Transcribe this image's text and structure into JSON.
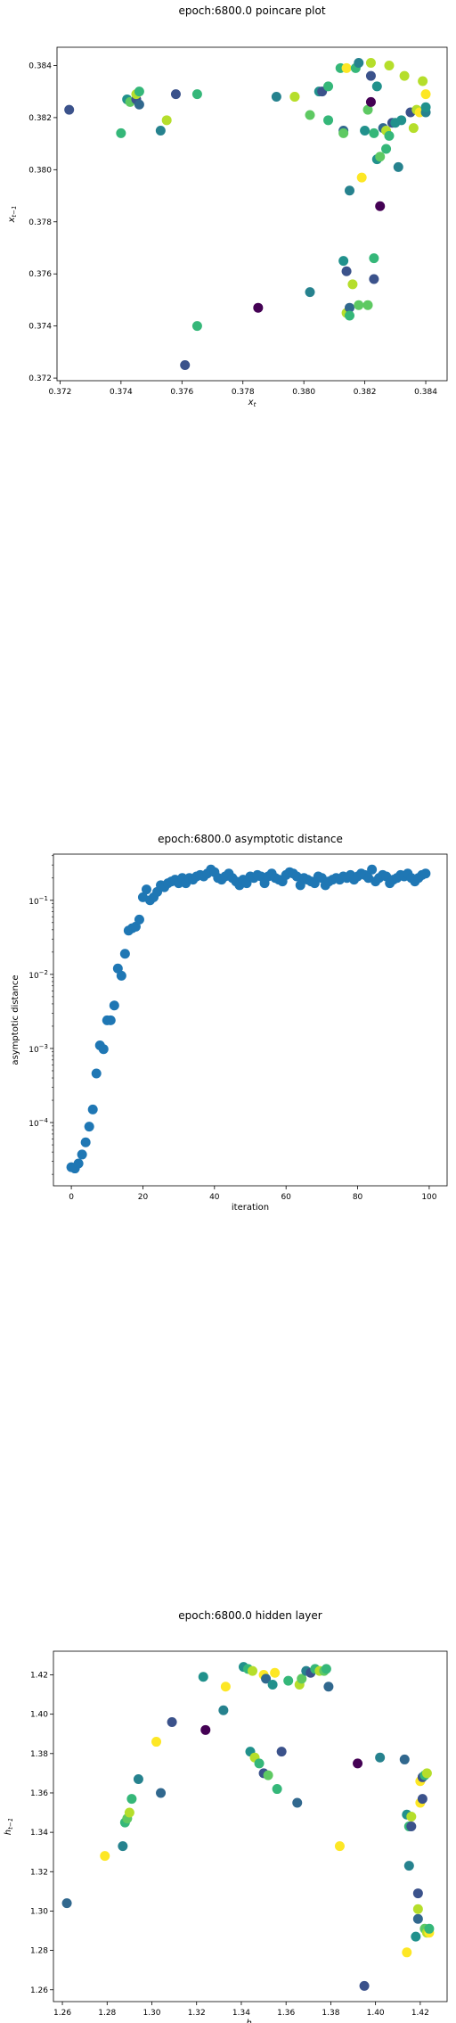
{
  "chart_data": [
    {
      "type": "scatter",
      "title": "epoch:6800.0 poincare plot",
      "xlabel": "x_t",
      "ylabel": "x_{t-1}",
      "xlim": [
        0.3719,
        0.3847
      ],
      "ylim": [
        0.3719,
        0.3847
      ],
      "xticks": [
        "0.372",
        "0.374",
        "0.376",
        "0.378",
        "0.380",
        "0.382",
        "0.384"
      ],
      "yticks": [
        "0.372",
        "0.374",
        "0.376",
        "0.378",
        "0.380",
        "0.382",
        "0.384"
      ],
      "grid": false,
      "points": [
        {
          "x": 0.3723,
          "y": 0.3823,
          "c": "#3b528b"
        },
        {
          "x": 0.374,
          "y": 0.3814,
          "c": "#35b779"
        },
        {
          "x": 0.3742,
          "y": 0.3827,
          "c": "#21918c"
        },
        {
          "x": 0.3743,
          "y": 0.3826,
          "c": "#5ec962"
        },
        {
          "x": 0.3745,
          "y": 0.3827,
          "c": "#3b528b"
        },
        {
          "x": 0.3745,
          "y": 0.3829,
          "c": "#b5de2b"
        },
        {
          "x": 0.3746,
          "y": 0.383,
          "c": "#35b779"
        },
        {
          "x": 0.3746,
          "y": 0.3825,
          "c": "#31688e"
        },
        {
          "x": 0.3753,
          "y": 0.3815,
          "c": "#26828e"
        },
        {
          "x": 0.3755,
          "y": 0.3819,
          "c": "#b5de2b"
        },
        {
          "x": 0.3758,
          "y": 0.3829,
          "c": "#3b528b"
        },
        {
          "x": 0.3761,
          "y": 0.3725,
          "c": "#3b528b"
        },
        {
          "x": 0.3765,
          "y": 0.3829,
          "c": "#35b779"
        },
        {
          "x": 0.3765,
          "y": 0.374,
          "c": "#35b779"
        },
        {
          "x": 0.3785,
          "y": 0.3747,
          "c": "#440154"
        },
        {
          "x": 0.3791,
          "y": 0.3828,
          "c": "#26828e"
        },
        {
          "x": 0.3797,
          "y": 0.3828,
          "c": "#fde725"
        },
        {
          "x": 0.3797,
          "y": 0.3828,
          "c": "#b5de2b"
        },
        {
          "x": 0.3802,
          "y": 0.3753,
          "c": "#26828e"
        },
        {
          "x": 0.3802,
          "y": 0.3821,
          "c": "#5ec962"
        },
        {
          "x": 0.3805,
          "y": 0.383,
          "c": "#21918c"
        },
        {
          "x": 0.3806,
          "y": 0.383,
          "c": "#3b528b"
        },
        {
          "x": 0.3808,
          "y": 0.3832,
          "c": "#35b779"
        },
        {
          "x": 0.3808,
          "y": 0.3819,
          "c": "#35b779"
        },
        {
          "x": 0.3812,
          "y": 0.3839,
          "c": "#35b779"
        },
        {
          "x": 0.3813,
          "y": 0.3815,
          "c": "#31688e"
        },
        {
          "x": 0.3813,
          "y": 0.3814,
          "c": "#5ec962"
        },
        {
          "x": 0.3813,
          "y": 0.3765,
          "c": "#21918c"
        },
        {
          "x": 0.3814,
          "y": 0.3761,
          "c": "#3b528b"
        },
        {
          "x": 0.3814,
          "y": 0.3745,
          "c": "#b5de2b"
        },
        {
          "x": 0.3814,
          "y": 0.3839,
          "c": "#fde725"
        },
        {
          "x": 0.3815,
          "y": 0.3792,
          "c": "#26828e"
        },
        {
          "x": 0.3815,
          "y": 0.3747,
          "c": "#31688e"
        },
        {
          "x": 0.3815,
          "y": 0.3744,
          "c": "#35b779"
        },
        {
          "x": 0.3816,
          "y": 0.3756,
          "c": "#b5de2b"
        },
        {
          "x": 0.3817,
          "y": 0.3839,
          "c": "#35b779"
        },
        {
          "x": 0.3818,
          "y": 0.3841,
          "c": "#26828e"
        },
        {
          "x": 0.3818,
          "y": 0.3748,
          "c": "#5ec962"
        },
        {
          "x": 0.3819,
          "y": 0.3797,
          "c": "#fde725"
        },
        {
          "x": 0.382,
          "y": 0.3815,
          "c": "#21918c"
        },
        {
          "x": 0.3821,
          "y": 0.3748,
          "c": "#5ec962"
        },
        {
          "x": 0.3821,
          "y": 0.3823,
          "c": "#5ec962"
        },
        {
          "x": 0.3822,
          "y": 0.3841,
          "c": "#b5de2b"
        },
        {
          "x": 0.3822,
          "y": 0.3836,
          "c": "#3b528b"
        },
        {
          "x": 0.3822,
          "y": 0.3826,
          "c": "#440154"
        },
        {
          "x": 0.3823,
          "y": 0.3758,
          "c": "#3b528b"
        },
        {
          "x": 0.3823,
          "y": 0.3766,
          "c": "#35b779"
        },
        {
          "x": 0.3823,
          "y": 0.3814,
          "c": "#35b779"
        },
        {
          "x": 0.3824,
          "y": 0.3832,
          "c": "#21918c"
        },
        {
          "x": 0.3824,
          "y": 0.3804,
          "c": "#21918c"
        },
        {
          "x": 0.3825,
          "y": 0.3786,
          "c": "#440154"
        },
        {
          "x": 0.3825,
          "y": 0.3805,
          "c": "#5ec962"
        },
        {
          "x": 0.3826,
          "y": 0.3816,
          "c": "#31688e"
        },
        {
          "x": 0.3827,
          "y": 0.3815,
          "c": "#b5de2b"
        },
        {
          "x": 0.3827,
          "y": 0.3808,
          "c": "#35b779"
        },
        {
          "x": 0.3828,
          "y": 0.3813,
          "c": "#35b779"
        },
        {
          "x": 0.3828,
          "y": 0.384,
          "c": "#b5de2b"
        },
        {
          "x": 0.3829,
          "y": 0.3818,
          "c": "#3b528b"
        },
        {
          "x": 0.383,
          "y": 0.3818,
          "c": "#21918c"
        },
        {
          "x": 0.3831,
          "y": 0.3801,
          "c": "#26828e"
        },
        {
          "x": 0.3832,
          "y": 0.3819,
          "c": "#21918c"
        },
        {
          "x": 0.3833,
          "y": 0.3836,
          "c": "#b5de2b"
        },
        {
          "x": 0.3835,
          "y": 0.3822,
          "c": "#3b528b"
        },
        {
          "x": 0.3836,
          "y": 0.3816,
          "c": "#b5de2b"
        },
        {
          "x": 0.3837,
          "y": 0.3823,
          "c": "#b5de2b"
        },
        {
          "x": 0.3838,
          "y": 0.3822,
          "c": "#fde725"
        },
        {
          "x": 0.3839,
          "y": 0.3834,
          "c": "#b5de2b"
        },
        {
          "x": 0.384,
          "y": 0.3822,
          "c": "#26828e"
        },
        {
          "x": 0.384,
          "y": 0.3829,
          "c": "#fde725"
        },
        {
          "x": 0.384,
          "y": 0.3824,
          "c": "#21918c"
        }
      ]
    },
    {
      "type": "scatter",
      "title": "epoch:6800.0 asymptotic distance",
      "xlabel": "iteration",
      "ylabel": "asymptotic distance",
      "yscale": "log",
      "xlim": [
        -5,
        105
      ],
      "ylim": [
        1.4e-05,
        0.42
      ],
      "xticks": [
        "0",
        "20",
        "40",
        "60",
        "80",
        "100"
      ],
      "yticks": [
        "10^-4",
        "10^-3",
        "10^-2",
        "10^-1"
      ],
      "grid": false,
      "color": "#1f77b4",
      "x": [
        0,
        1,
        2,
        3,
        4,
        5,
        6,
        7,
        8,
        9,
        10,
        11,
        12,
        13,
        14,
        15,
        16,
        17,
        18,
        19,
        20,
        21,
        22,
        23,
        24,
        25,
        26,
        27,
        28,
        29,
        30,
        31,
        32,
        33,
        34,
        35,
        36,
        37,
        38,
        39,
        40,
        41,
        42,
        43,
        44,
        45,
        46,
        47,
        48,
        49,
        50,
        51,
        52,
        53,
        54,
        55,
        56,
        57,
        58,
        59,
        60,
        61,
        62,
        63,
        64,
        65,
        66,
        67,
        68,
        69,
        70,
        71,
        72,
        73,
        74,
        75,
        76,
        77,
        78,
        79,
        80,
        81,
        82,
        83,
        84,
        85,
        86,
        87,
        88,
        89,
        90,
        91,
        92,
        93,
        94,
        95,
        96,
        97,
        98,
        99
      ],
      "y": [
        2.5e-05,
        2.4e-05,
        2.8e-05,
        3.7e-05,
        5.4e-05,
        8.8e-05,
        0.00015,
        0.00046,
        0.0011,
        0.00098,
        0.0024,
        0.0024,
        0.0038,
        0.012,
        0.0096,
        0.019,
        0.039,
        0.042,
        0.044,
        0.055,
        0.11,
        0.14,
        0.1,
        0.11,
        0.13,
        0.16,
        0.15,
        0.17,
        0.18,
        0.19,
        0.17,
        0.2,
        0.17,
        0.2,
        0.19,
        0.21,
        0.22,
        0.21,
        0.23,
        0.26,
        0.24,
        0.2,
        0.19,
        0.21,
        0.23,
        0.2,
        0.18,
        0.16,
        0.19,
        0.17,
        0.21,
        0.2,
        0.22,
        0.21,
        0.17,
        0.21,
        0.23,
        0.2,
        0.19,
        0.18,
        0.22,
        0.24,
        0.23,
        0.21,
        0.16,
        0.2,
        0.19,
        0.18,
        0.17,
        0.21,
        0.2,
        0.16,
        0.18,
        0.19,
        0.2,
        0.19,
        0.21,
        0.2,
        0.22,
        0.19,
        0.21,
        0.23,
        0.22,
        0.2,
        0.26,
        0.18,
        0.2,
        0.22,
        0.21,
        0.17,
        0.19,
        0.2,
        0.22,
        0.21,
        0.23,
        0.2,
        0.18,
        0.2,
        0.22,
        0.23
      ]
    },
    {
      "type": "scatter",
      "title": "epoch:6800.0 hidden layer",
      "xlabel": "h_t",
      "ylabel": "h_{t-1}",
      "xlim": [
        1.256,
        1.432
      ],
      "ylim": [
        1.254,
        1.432
      ],
      "xticks": [
        "1.26",
        "1.28",
        "1.30",
        "1.32",
        "1.34",
        "1.36",
        "1.38",
        "1.40",
        "1.42"
      ],
      "yticks": [
        "1.26",
        "1.28",
        "1.30",
        "1.32",
        "1.34",
        "1.36",
        "1.38",
        "1.40",
        "1.42"
      ],
      "grid": false,
      "points": [
        {
          "x": 1.262,
          "y": 1.304,
          "c": "#31688e"
        },
        {
          "x": 1.279,
          "y": 1.328,
          "c": "#fde725"
        },
        {
          "x": 1.287,
          "y": 1.333,
          "c": "#26828e"
        },
        {
          "x": 1.288,
          "y": 1.345,
          "c": "#35b779"
        },
        {
          "x": 1.289,
          "y": 1.347,
          "c": "#5ec962"
        },
        {
          "x": 1.29,
          "y": 1.35,
          "c": "#b5de2b"
        },
        {
          "x": 1.291,
          "y": 1.357,
          "c": "#35b779"
        },
        {
          "x": 1.294,
          "y": 1.367,
          "c": "#26828e"
        },
        {
          "x": 1.302,
          "y": 1.386,
          "c": "#fde725"
        },
        {
          "x": 1.304,
          "y": 1.36,
          "c": "#31688e"
        },
        {
          "x": 1.309,
          "y": 1.396,
          "c": "#3b528b"
        },
        {
          "x": 1.323,
          "y": 1.419,
          "c": "#21918c"
        },
        {
          "x": 1.324,
          "y": 1.392,
          "c": "#440154"
        },
        {
          "x": 1.332,
          "y": 1.402,
          "c": "#26828e"
        },
        {
          "x": 1.333,
          "y": 1.414,
          "c": "#fde725"
        },
        {
          "x": 1.341,
          "y": 1.424,
          "c": "#21918c"
        },
        {
          "x": 1.343,
          "y": 1.423,
          "c": "#35b779"
        },
        {
          "x": 1.345,
          "y": 1.422,
          "c": "#b5de2b"
        },
        {
          "x": 1.344,
          "y": 1.381,
          "c": "#21918c"
        },
        {
          "x": 1.346,
          "y": 1.378,
          "c": "#b5de2b"
        },
        {
          "x": 1.348,
          "y": 1.375,
          "c": "#35b779"
        },
        {
          "x": 1.35,
          "y": 1.42,
          "c": "#fde725"
        },
        {
          "x": 1.351,
          "y": 1.418,
          "c": "#31688e"
        },
        {
          "x": 1.35,
          "y": 1.37,
          "c": "#3b528b"
        },
        {
          "x": 1.352,
          "y": 1.369,
          "c": "#5ec962"
        },
        {
          "x": 1.354,
          "y": 1.415,
          "c": "#21918c"
        },
        {
          "x": 1.355,
          "y": 1.421,
          "c": "#fde725"
        },
        {
          "x": 1.356,
          "y": 1.362,
          "c": "#35b779"
        },
        {
          "x": 1.358,
          "y": 1.381,
          "c": "#3b528b"
        },
        {
          "x": 1.361,
          "y": 1.417,
          "c": "#35b779"
        },
        {
          "x": 1.365,
          "y": 1.355,
          "c": "#31688e"
        },
        {
          "x": 1.366,
          "y": 1.415,
          "c": "#b5de2b"
        },
        {
          "x": 1.367,
          "y": 1.418,
          "c": "#5ec962"
        },
        {
          "x": 1.369,
          "y": 1.422,
          "c": "#26828e"
        },
        {
          "x": 1.371,
          "y": 1.421,
          "c": "#3b528b"
        },
        {
          "x": 1.373,
          "y": 1.423,
          "c": "#35b779"
        },
        {
          "x": 1.375,
          "y": 1.422,
          "c": "#b5de2b"
        },
        {
          "x": 1.377,
          "y": 1.422,
          "c": "#5ec962"
        },
        {
          "x": 1.378,
          "y": 1.423,
          "c": "#35b779"
        },
        {
          "x": 1.379,
          "y": 1.414,
          "c": "#31688e"
        },
        {
          "x": 1.384,
          "y": 1.333,
          "c": "#fde725"
        },
        {
          "x": 1.392,
          "y": 1.375,
          "c": "#440154"
        },
        {
          "x": 1.395,
          "y": 1.262,
          "c": "#3b528b"
        },
        {
          "x": 1.402,
          "y": 1.378,
          "c": "#26828e"
        },
        {
          "x": 1.413,
          "y": 1.377,
          "c": "#31688e"
        },
        {
          "x": 1.414,
          "y": 1.279,
          "c": "#fde725"
        },
        {
          "x": 1.414,
          "y": 1.349,
          "c": "#21918c"
        },
        {
          "x": 1.415,
          "y": 1.343,
          "c": "#35b779"
        },
        {
          "x": 1.415,
          "y": 1.323,
          "c": "#26828e"
        },
        {
          "x": 1.416,
          "y": 1.343,
          "c": "#3b528b"
        },
        {
          "x": 1.416,
          "y": 1.348,
          "c": "#b5de2b"
        },
        {
          "x": 1.418,
          "y": 1.287,
          "c": "#21918c"
        },
        {
          "x": 1.419,
          "y": 1.309,
          "c": "#3b528b"
        },
        {
          "x": 1.419,
          "y": 1.296,
          "c": "#31688e"
        },
        {
          "x": 1.419,
          "y": 1.301,
          "c": "#b5de2b"
        },
        {
          "x": 1.42,
          "y": 1.366,
          "c": "#fde725"
        },
        {
          "x": 1.42,
          "y": 1.355,
          "c": "#fde725"
        },
        {
          "x": 1.421,
          "y": 1.368,
          "c": "#3b528b"
        },
        {
          "x": 1.421,
          "y": 1.357,
          "c": "#3b528b"
        },
        {
          "x": 1.422,
          "y": 1.369,
          "c": "#35b779"
        },
        {
          "x": 1.422,
          "y": 1.291,
          "c": "#5ec962"
        },
        {
          "x": 1.423,
          "y": 1.37,
          "c": "#b5de2b"
        },
        {
          "x": 1.423,
          "y": 1.289,
          "c": "#b5de2b"
        },
        {
          "x": 1.424,
          "y": 1.289,
          "c": "#fde725"
        },
        {
          "x": 1.424,
          "y": 1.291,
          "c": "#35b779"
        }
      ]
    }
  ]
}
